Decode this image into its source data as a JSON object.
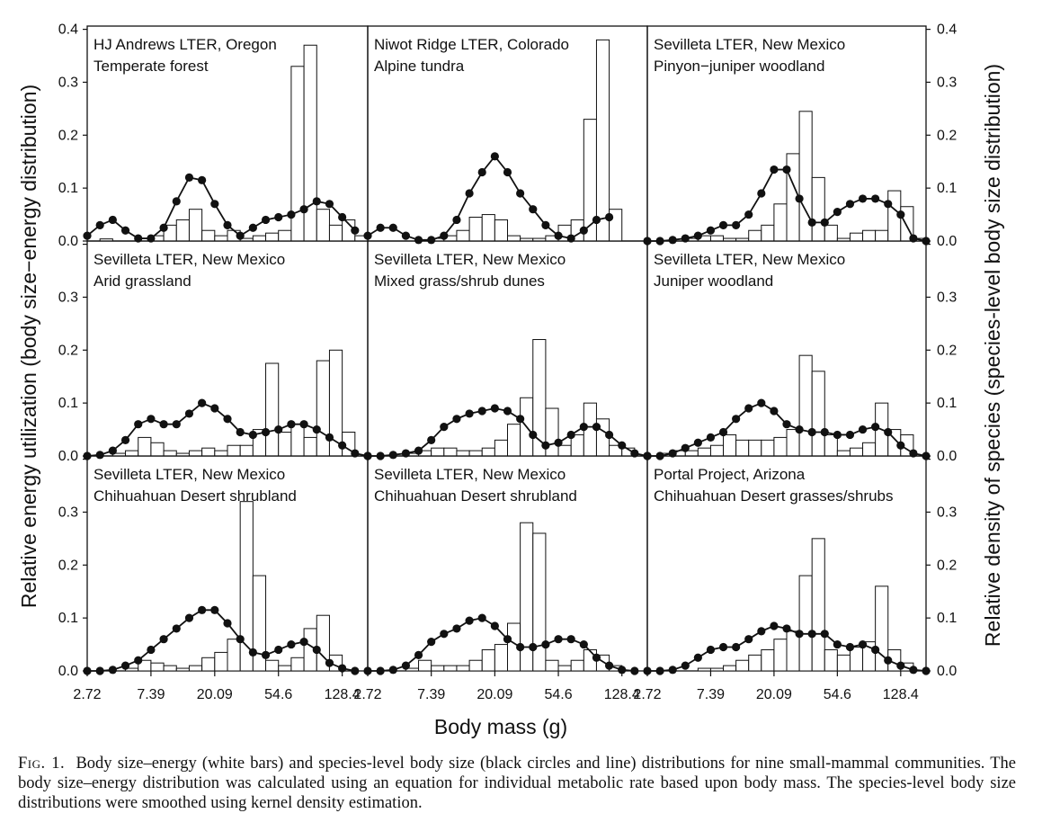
{
  "figure": {
    "xlabel": "Body mass (g)",
    "ylabel_left": "Relative energy utilization (body size−energy distribution)",
    "ylabel_right": "Relative density of species (species-level body size distribution)",
    "y_ticks": [
      "0.0",
      "0.1",
      "0.2",
      "0.3",
      "0.4"
    ],
    "x_ticks": [
      "2.72",
      "7.39",
      "20.09",
      "54.6",
      "128.4"
    ],
    "colors": {
      "bars_fill": "#ffffff",
      "bars_stroke": "#111111",
      "line": "#111111",
      "points": "#111111"
    }
  },
  "caption": {
    "label": "Fig. 1.",
    "text": "Body size–energy (white bars) and species-level body size (black circles and line) distributions for nine small-mammal communities. The body size–energy distribution was calculated using an equation for individual metabolic rate based upon body mass. The species-level body size distributions were smoothed using kernel density estimation."
  },
  "chart_data": [
    {
      "type": "bar+line",
      "title": "HJ Andrews LTER, Oregon",
      "subtitle": "Temperate forest",
      "xlabel": "Body mass (g)",
      "ylabel_left": "Relative energy utilization (body size−energy distribution)",
      "ylabel_right": "Relative density of species (species-level body size distribution)",
      "xlim_ln": [
        1.0,
        5.4
      ],
      "ylim": [
        0,
        0.4
      ],
      "x_ticks": [
        "2.72",
        "7.39",
        "20.09",
        "54.6",
        "128.4"
      ],
      "bin_start_ln": 1.0,
      "bin_width_ln": 0.2,
      "bars": [
        0,
        0.004,
        0,
        0,
        0,
        0.01,
        0.03,
        0.04,
        0.06,
        0.02,
        0.01,
        0.02,
        0.005,
        0.01,
        0.015,
        0.02,
        0.33,
        0.37,
        0.06,
        0.03,
        0.04,
        0.01
      ],
      "curve_ln": [
        1.0,
        1.2,
        1.4,
        1.6,
        1.8,
        2.0,
        2.2,
        2.4,
        2.6,
        2.8,
        3.0,
        3.2,
        3.4,
        3.6,
        3.8,
        4.0,
        4.2,
        4.4,
        4.6,
        4.8,
        5.0,
        5.2
      ],
      "curve": [
        0.01,
        0.03,
        0.04,
        0.02,
        0.005,
        0.005,
        0.025,
        0.075,
        0.12,
        0.115,
        0.07,
        0.03,
        0.01,
        0.025,
        0.04,
        0.045,
        0.05,
        0.06,
        0.075,
        0.07,
        0.045,
        0.02
      ]
    },
    {
      "type": "bar+line",
      "title": "Niwot Ridge LTER, Colorado",
      "subtitle": "Alpine tundra",
      "xlabel": "Body mass (g)",
      "xlim_ln": [
        1.0,
        5.4
      ],
      "ylim": [
        0,
        0.4
      ],
      "x_ticks": [
        "2.72",
        "7.39",
        "20.09",
        "54.6",
        "128.4"
      ],
      "bin_start_ln": 1.0,
      "bin_width_ln": 0.2,
      "bars": [
        0,
        0,
        0,
        0,
        0,
        0.005,
        0.01,
        0.02,
        0.045,
        0.05,
        0.04,
        0.01,
        0.005,
        0.005,
        0.01,
        0.03,
        0.04,
        0.23,
        0.38,
        0.06,
        0,
        0
      ],
      "curve_ln": [
        1.0,
        1.2,
        1.4,
        1.6,
        1.8,
        2.0,
        2.2,
        2.4,
        2.6,
        2.8,
        3.0,
        3.2,
        3.4,
        3.6,
        3.8,
        4.0,
        4.2,
        4.4,
        4.6,
        4.8
      ],
      "curve": [
        0.01,
        0.025,
        0.025,
        0.01,
        0.002,
        0.002,
        0.01,
        0.04,
        0.09,
        0.13,
        0.16,
        0.13,
        0.09,
        0.06,
        0.03,
        0.01,
        0.005,
        0.02,
        0.04,
        0.045
      ]
    },
    {
      "type": "bar+line",
      "title": "Sevilleta LTER, New Mexico",
      "subtitle": "Pinyon−juniper woodland",
      "xlabel": "Body mass (g)",
      "xlim_ln": [
        1.0,
        5.4
      ],
      "ylim": [
        0,
        0.4
      ],
      "x_ticks": [
        "2.72",
        "7.39",
        "20.09",
        "54.6",
        "128.4"
      ],
      "bin_start_ln": 1.0,
      "bin_width_ln": 0.2,
      "bars": [
        0,
        0,
        0,
        0.005,
        0.01,
        0.01,
        0.005,
        0.005,
        0.02,
        0.03,
        0.07,
        0.165,
        0.245,
        0.12,
        0.03,
        0.005,
        0.015,
        0.02,
        0.02,
        0.095,
        0.065,
        0.005
      ],
      "curve_ln": [
        1.0,
        1.2,
        1.4,
        1.6,
        1.8,
        2.0,
        2.2,
        2.4,
        2.6,
        2.8,
        3.0,
        3.2,
        3.4,
        3.6,
        3.8,
        4.0,
        4.2,
        4.4,
        4.6,
        4.8,
        5.0,
        5.2,
        5.4
      ],
      "curve": [
        0,
        0,
        0.002,
        0.005,
        0.01,
        0.02,
        0.03,
        0.03,
        0.05,
        0.09,
        0.135,
        0.135,
        0.08,
        0.035,
        0.035,
        0.055,
        0.07,
        0.08,
        0.08,
        0.07,
        0.05,
        0.005,
        0
      ]
    },
    {
      "type": "bar+line",
      "title": "Sevilleta LTER, New Mexico",
      "subtitle": "Arid grassland",
      "xlabel": "Body mass (g)",
      "xlim_ln": [
        1.0,
        5.4
      ],
      "ylim": [
        0,
        0.4
      ],
      "x_ticks": [
        "2.72",
        "7.39",
        "20.09",
        "54.6",
        "128.4"
      ],
      "bin_start_ln": 1.0,
      "bin_width_ln": 0.2,
      "bars": [
        0,
        0,
        0.005,
        0.01,
        0.035,
        0.025,
        0.01,
        0.005,
        0.01,
        0.015,
        0.01,
        0.02,
        0.02,
        0.05,
        0.175,
        0.045,
        0.06,
        0.035,
        0.18,
        0.2,
        0.045,
        0
      ],
      "curve_ln": [
        1.0,
        1.2,
        1.4,
        1.6,
        1.8,
        2.0,
        2.2,
        2.4,
        2.6,
        2.8,
        3.0,
        3.2,
        3.4,
        3.6,
        3.8,
        4.0,
        4.2,
        4.4,
        4.6,
        4.8,
        5.0,
        5.2,
        5.4
      ],
      "curve": [
        0,
        0.002,
        0.01,
        0.03,
        0.06,
        0.07,
        0.06,
        0.06,
        0.08,
        0.1,
        0.09,
        0.07,
        0.045,
        0.04,
        0.045,
        0.05,
        0.06,
        0.06,
        0.05,
        0.035,
        0.02,
        0.005,
        0
      ]
    },
    {
      "type": "bar+line",
      "title": "Sevilleta LTER, New Mexico",
      "subtitle": "Mixed grass/shrub dunes",
      "xlabel": "Body mass (g)",
      "xlim_ln": [
        1.0,
        5.4
      ],
      "ylim": [
        0,
        0.4
      ],
      "x_ticks": [
        "2.72",
        "7.39",
        "20.09",
        "54.6",
        "128.4"
      ],
      "bin_start_ln": 1.0,
      "bin_width_ln": 0.2,
      "bars": [
        0,
        0,
        0,
        0.005,
        0.01,
        0.015,
        0.015,
        0.01,
        0.01,
        0.015,
        0.03,
        0.06,
        0.11,
        0.22,
        0.09,
        0.02,
        0.04,
        0.1,
        0.07,
        0.02,
        0.015,
        0
      ],
      "curve_ln": [
        1.0,
        1.2,
        1.4,
        1.6,
        1.8,
        2.0,
        2.2,
        2.4,
        2.6,
        2.8,
        3.0,
        3.2,
        3.4,
        3.6,
        3.8,
        4.0,
        4.2,
        4.4,
        4.6,
        4.8,
        5.0,
        5.2,
        5.4
      ],
      "curve": [
        0,
        0,
        0.002,
        0.005,
        0.01,
        0.03,
        0.055,
        0.07,
        0.08,
        0.085,
        0.09,
        0.085,
        0.07,
        0.04,
        0.02,
        0.025,
        0.04,
        0.055,
        0.055,
        0.04,
        0.02,
        0.005,
        0
      ]
    },
    {
      "type": "bar+line",
      "title": "Sevilleta LTER, New Mexico",
      "subtitle": "Juniper woodland",
      "xlabel": "Body mass (g)",
      "xlim_ln": [
        1.0,
        5.4
      ],
      "ylim": [
        0,
        0.4
      ],
      "x_ticks": [
        "2.72",
        "7.39",
        "20.09",
        "54.6",
        "128.4"
      ],
      "bin_start_ln": 1.0,
      "bin_width_ln": 0.2,
      "bars": [
        0,
        0.005,
        0.01,
        0.01,
        0.015,
        0.02,
        0.04,
        0.03,
        0.03,
        0.03,
        0.035,
        0.05,
        0.19,
        0.16,
        0.04,
        0.01,
        0.015,
        0.025,
        0.1,
        0.05,
        0.04,
        0
      ],
      "curve_ln": [
        1.0,
        1.2,
        1.4,
        1.6,
        1.8,
        2.0,
        2.2,
        2.4,
        2.6,
        2.8,
        3.0,
        3.2,
        3.4,
        3.6,
        3.8,
        4.0,
        4.2,
        4.4,
        4.6,
        4.8,
        5.0,
        5.2,
        5.4
      ],
      "curve": [
        0,
        0,
        0.005,
        0.015,
        0.025,
        0.035,
        0.045,
        0.07,
        0.09,
        0.1,
        0.085,
        0.06,
        0.05,
        0.045,
        0.045,
        0.04,
        0.04,
        0.05,
        0.055,
        0.045,
        0.02,
        0.005,
        0
      ]
    },
    {
      "type": "bar+line",
      "title": "Sevilleta LTER, New Mexico",
      "subtitle": "Chihuahuan Desert shrubland",
      "xlabel": "Body mass (g)",
      "xlim_ln": [
        1.0,
        5.4
      ],
      "ylim": [
        0,
        0.4
      ],
      "x_ticks": [
        "2.72",
        "7.39",
        "20.09",
        "54.6",
        "128.4"
      ],
      "bin_start_ln": 1.0,
      "bin_width_ln": 0.2,
      "bars": [
        0,
        0,
        0,
        0.005,
        0.02,
        0.015,
        0.01,
        0.005,
        0.01,
        0.025,
        0.035,
        0.06,
        0.32,
        0.18,
        0.02,
        0.01,
        0.025,
        0.08,
        0.105,
        0.03,
        0,
        0
      ],
      "curve_ln": [
        1.0,
        1.2,
        1.4,
        1.6,
        1.8,
        2.0,
        2.2,
        2.4,
        2.6,
        2.8,
        3.0,
        3.2,
        3.4,
        3.6,
        3.8,
        4.0,
        4.2,
        4.4,
        4.6,
        4.8,
        5.0,
        5.2
      ],
      "curve": [
        0,
        0,
        0.002,
        0.01,
        0.02,
        0.04,
        0.06,
        0.08,
        0.1,
        0.115,
        0.115,
        0.09,
        0.06,
        0.035,
        0.03,
        0.04,
        0.05,
        0.055,
        0.04,
        0.015,
        0.005,
        0
      ]
    },
    {
      "type": "bar+line",
      "title": "Sevilleta LTER, New Mexico",
      "subtitle": "Chihuahuan Desert shrubland",
      "xlabel": "Body mass (g)",
      "xlim_ln": [
        1.0,
        5.4
      ],
      "ylim": [
        0,
        0.4
      ],
      "x_ticks": [
        "2.72",
        "7.39",
        "20.09",
        "54.6",
        "128.4"
      ],
      "bin_start_ln": 1.0,
      "bin_width_ln": 0.2,
      "bars": [
        0,
        0,
        0,
        0.005,
        0.02,
        0.01,
        0.01,
        0.01,
        0.02,
        0.04,
        0.05,
        0.09,
        0.28,
        0.26,
        0.02,
        0.01,
        0.02,
        0.04,
        0.03,
        0.01,
        0,
        0
      ],
      "curve_ln": [
        1.0,
        1.2,
        1.4,
        1.6,
        1.8,
        2.0,
        2.2,
        2.4,
        2.6,
        2.8,
        3.0,
        3.2,
        3.4,
        3.6,
        3.8,
        4.0,
        4.2,
        4.4,
        4.6,
        4.8,
        5.0,
        5.2
      ],
      "curve": [
        0,
        0,
        0.002,
        0.01,
        0.03,
        0.055,
        0.07,
        0.08,
        0.095,
        0.1,
        0.085,
        0.06,
        0.045,
        0.045,
        0.05,
        0.06,
        0.06,
        0.05,
        0.025,
        0.01,
        0.002,
        0
      ]
    },
    {
      "type": "bar+line",
      "title": "Portal Project, Arizona",
      "subtitle": "Chihuahuan Desert grasses/shrubs",
      "xlabel": "Body mass (g)",
      "ylabel_right": "Relative density of species (species-level body size distribution)",
      "xlim_ln": [
        1.0,
        5.4
      ],
      "ylim": [
        0,
        0.4
      ],
      "x_ticks": [
        "2.72",
        "7.39",
        "20.09",
        "54.6",
        "128.4"
      ],
      "bin_start_ln": 1.0,
      "bin_width_ln": 0.2,
      "bars": [
        0,
        0,
        0,
        0,
        0.005,
        0.005,
        0.01,
        0.02,
        0.03,
        0.04,
        0.06,
        0.075,
        0.18,
        0.25,
        0.04,
        0.03,
        0.045,
        0.055,
        0.16,
        0.04,
        0.015,
        0
      ],
      "curve_ln": [
        1.0,
        1.2,
        1.4,
        1.6,
        1.8,
        2.0,
        2.2,
        2.4,
        2.6,
        2.8,
        3.0,
        3.2,
        3.4,
        3.6,
        3.8,
        4.0,
        4.2,
        4.4,
        4.6,
        4.8,
        5.0,
        5.2,
        5.4
      ],
      "curve": [
        0,
        0,
        0.002,
        0.01,
        0.025,
        0.04,
        0.045,
        0.045,
        0.06,
        0.075,
        0.085,
        0.08,
        0.07,
        0.07,
        0.07,
        0.05,
        0.045,
        0.05,
        0.04,
        0.02,
        0.01,
        0.002,
        0
      ]
    }
  ]
}
